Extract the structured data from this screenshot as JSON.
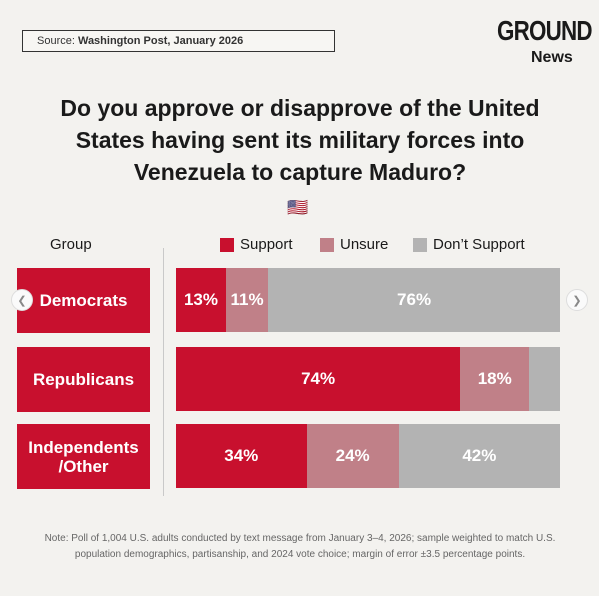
{
  "source_label": "Source: ",
  "source_value": "Washington Post, January 2026",
  "logo": {
    "line1": "GROUND",
    "line2": "News"
  },
  "title": "Do you approve or disapprove of the United States having sent its military forces into Venezuela to capture Maduro?",
  "flag": "🇺🇸",
  "group_header": "Group",
  "nav": {
    "prev": "❮",
    "next": "❯"
  },
  "note": "Note: Poll of 1,004 U.S. adults conducted by text message from January 3–4, 2026; sample weighted to match U.S. population demographics, partisanship, and 2024 vote choice; margin of error ±3.5 percentage points.",
  "chart_data": {
    "type": "bar",
    "stacked": true,
    "orientation": "horizontal",
    "categories": [
      "Democrats",
      "Republicans",
      "Independents /Other"
    ],
    "series": [
      {
        "name": "Support",
        "color": "#c8102e",
        "values": [
          13,
          74,
          34
        ],
        "labels": [
          "13%",
          "74%",
          "34%"
        ]
      },
      {
        "name": "Unsure",
        "color": "#c08088",
        "values": [
          11,
          18,
          24
        ],
        "labels": [
          "11%",
          "18%",
          "24%"
        ]
      },
      {
        "name": "Don’t Support",
        "color": "#b3b3b3",
        "values": [
          76,
          8,
          42
        ],
        "labels": [
          "76%",
          "",
          "42%"
        ]
      }
    ],
    "legend_position": "top"
  }
}
